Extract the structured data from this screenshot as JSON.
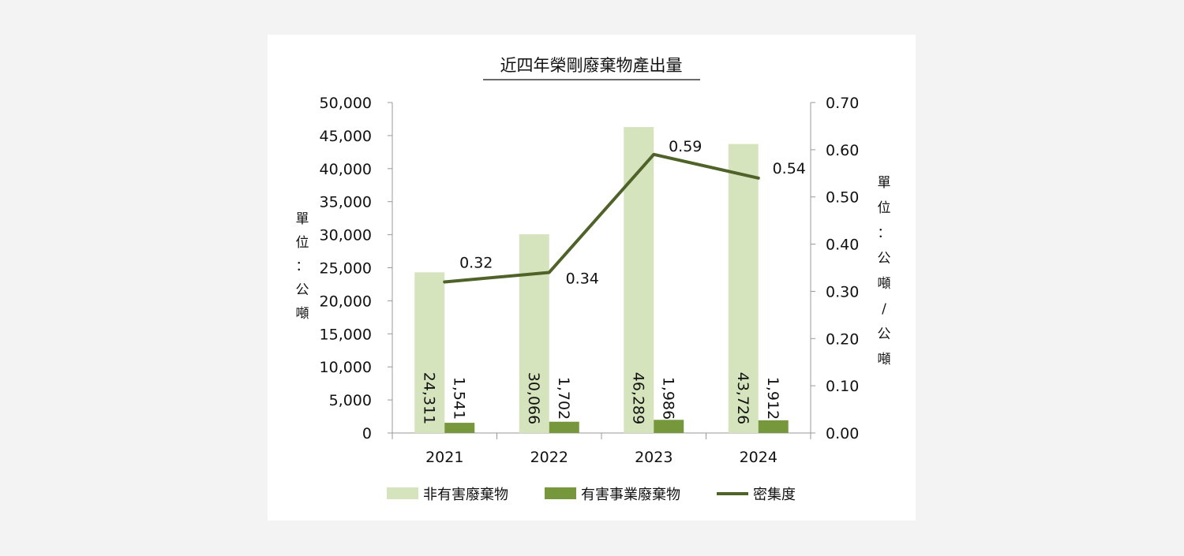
{
  "chart_data": {
    "type": "bar",
    "title": "近四年榮剛廢棄物產出量",
    "categories": [
      "2021",
      "2022",
      "2023",
      "2024"
    ],
    "series": [
      {
        "name": "非有害廢棄物",
        "type": "bar",
        "axis": "left",
        "color": "#d6e4bd",
        "values": [
          24311,
          30066,
          46289,
          43726
        ],
        "labels": [
          "24,311",
          "30,066",
          "46,289",
          "43,726"
        ]
      },
      {
        "name": "有害事業廢棄物",
        "type": "bar",
        "axis": "left",
        "color": "#76973b",
        "values": [
          1541,
          1702,
          1986,
          1912
        ],
        "labels": [
          "1,541",
          "1,702",
          "1,986",
          "1,912"
        ]
      },
      {
        "name": "密集度",
        "type": "line",
        "axis": "right",
        "color": "#4f6228",
        "values": [
          0.32,
          0.34,
          0.59,
          0.54
        ],
        "labels": [
          "0.32",
          "0.34",
          "0.59",
          "0.54"
        ]
      }
    ],
    "left_axis": {
      "label": "單位：公噸",
      "ylim": [
        0,
        50000
      ],
      "ticks": [
        0,
        5000,
        10000,
        15000,
        20000,
        25000,
        30000,
        35000,
        40000,
        45000,
        50000
      ],
      "tick_labels": [
        "0",
        "5,000",
        "10,000",
        "15,000",
        "20,000",
        "25,000",
        "30,000",
        "35,000",
        "40,000",
        "45,000",
        "50,000"
      ]
    },
    "right_axis": {
      "label": "單位：公噸/公噸",
      "ylim": [
        0,
        0.7
      ],
      "ticks": [
        0,
        0.1,
        0.2,
        0.3,
        0.4,
        0.5,
        0.6,
        0.7
      ],
      "tick_labels": [
        "0.00",
        "0.10",
        "0.20",
        "0.30",
        "0.40",
        "0.50",
        "0.60",
        "0.70"
      ]
    },
    "grid": false,
    "legend_position": "bottom"
  }
}
